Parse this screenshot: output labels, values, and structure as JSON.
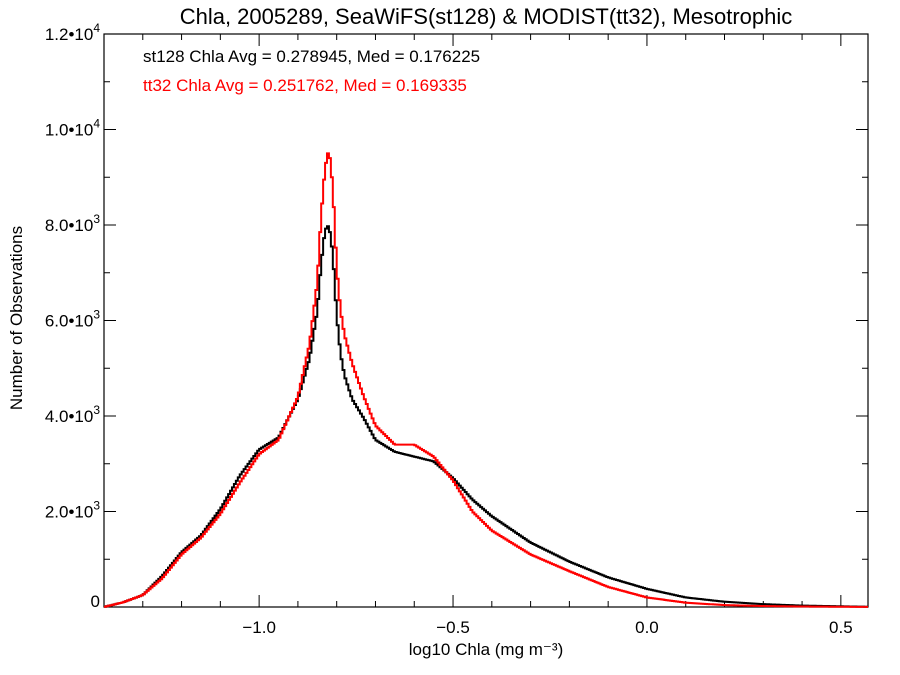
{
  "chart_data": {
    "type": "line",
    "title": "Chla, 2005289, SeaWiFS(st128) & MODIST(tt32), Mesotrophic",
    "xlabel": "log10 Chla (mg m⁻³)",
    "ylabel": "Number of Observations",
    "xlim": [
      -1.4,
      0.57
    ],
    "ylim": [
      0,
      12000
    ],
    "x_ticks": [
      -1.0,
      -0.5,
      0.0,
      0.5
    ],
    "x_tick_labels": [
      "−1.0",
      "−0.5",
      "0.0",
      "0.5"
    ],
    "y_ticks": [
      0,
      2000,
      4000,
      6000,
      8000,
      10000,
      12000
    ],
    "y_tick_labels": [
      {
        "base": "0",
        "exp": ""
      },
      {
        "base": "2.0•10",
        "exp": "3"
      },
      {
        "base": "4.0•10",
        "exp": "3"
      },
      {
        "base": "6.0•10",
        "exp": "3"
      },
      {
        "base": "8.0•10",
        "exp": "3"
      },
      {
        "base": "1.0•10",
        "exp": "4"
      },
      {
        "base": "1.2•10",
        "exp": "4"
      }
    ],
    "annotations": [
      {
        "text": "st128 Chla Avg = 0.278945, Med = 0.176225",
        "color": "#000000"
      },
      {
        "text": "tt32 Chla Avg = 0.251762, Med = 0.169335",
        "color": "#ff0000"
      }
    ],
    "step_style": "histogram",
    "series": [
      {
        "color": "#000000",
        "x": [
          -1.4,
          -1.35,
          -1.3,
          -1.25,
          -1.2,
          -1.15,
          -1.1,
          -1.05,
          -1.0,
          -0.95,
          -0.9,
          -0.87,
          -0.85,
          -0.84,
          -0.83,
          -0.82,
          -0.81,
          -0.8,
          -0.79,
          -0.78,
          -0.76,
          -0.73,
          -0.7,
          -0.65,
          -0.6,
          -0.55,
          -0.5,
          -0.45,
          -0.4,
          -0.3,
          -0.2,
          -0.1,
          0.0,
          0.1,
          0.2,
          0.3,
          0.4,
          0.5,
          0.57
        ],
        "values": [
          0,
          100,
          250,
          650,
          1150,
          1500,
          2050,
          2750,
          3300,
          3550,
          4350,
          5200,
          6200,
          7200,
          7900,
          8000,
          7400,
          6100,
          5300,
          4850,
          4350,
          3950,
          3500,
          3250,
          3150,
          3050,
          2700,
          2250,
          1900,
          1350,
          950,
          620,
          380,
          200,
          110,
          60,
          30,
          15,
          5
        ]
      },
      {
        "color": "#ff0000",
        "x": [
          -1.4,
          -1.35,
          -1.3,
          -1.25,
          -1.2,
          -1.15,
          -1.1,
          -1.05,
          -1.0,
          -0.95,
          -0.9,
          -0.87,
          -0.85,
          -0.84,
          -0.83,
          -0.82,
          -0.81,
          -0.8,
          -0.79,
          -0.78,
          -0.76,
          -0.73,
          -0.7,
          -0.65,
          -0.6,
          -0.55,
          -0.5,
          -0.45,
          -0.4,
          -0.3,
          -0.2,
          -0.1,
          0.0,
          0.1,
          0.2,
          0.3,
          0.4,
          0.5,
          0.57
        ],
        "values": [
          0,
          100,
          250,
          600,
          1100,
          1450,
          1950,
          2600,
          3200,
          3500,
          4400,
          5500,
          6800,
          8200,
          9200,
          9600,
          8800,
          7100,
          6200,
          5700,
          5100,
          4400,
          3800,
          3400,
          3400,
          3150,
          2650,
          2000,
          1600,
          1100,
          750,
          420,
          200,
          90,
          40,
          20,
          10,
          5,
          2
        ]
      }
    ]
  }
}
